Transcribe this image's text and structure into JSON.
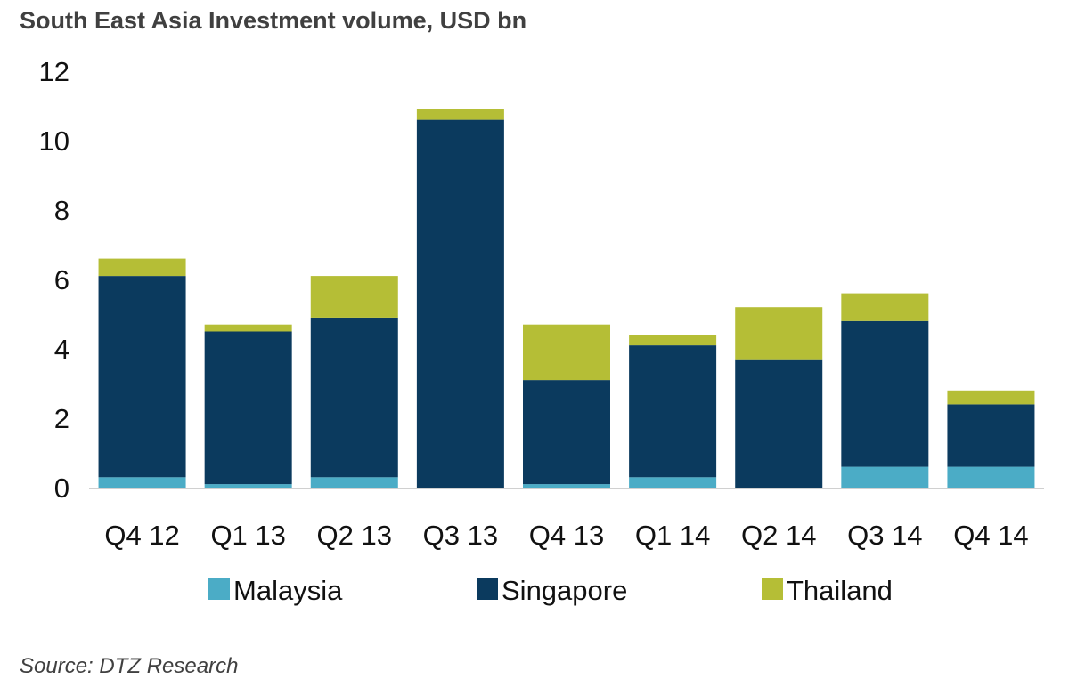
{
  "chart_data": {
    "type": "bar",
    "stacked": true,
    "title": "South East Asia Investment volume, USD bn",
    "source": "Source: DTZ Research",
    "categories": [
      "Q4 12",
      "Q1 13",
      "Q2 13",
      "Q3 13",
      "Q4 13",
      "Q1 14",
      "Q2 14",
      "Q3 14",
      "Q4 14"
    ],
    "series": [
      {
        "name": "Malaysia",
        "color": "#4BACC6",
        "values": [
          0.3,
          0.1,
          0.3,
          0.0,
          0.1,
          0.3,
          0.0,
          0.6,
          0.6
        ]
      },
      {
        "name": "Singapore",
        "color": "#0B3A5E",
        "values": [
          5.8,
          4.4,
          4.6,
          10.6,
          3.0,
          3.8,
          3.7,
          4.2,
          1.8
        ]
      },
      {
        "name": "Thailand",
        "color": "#B5BE36",
        "values": [
          0.5,
          0.2,
          1.2,
          0.3,
          1.6,
          0.3,
          1.5,
          0.8,
          0.4
        ]
      }
    ],
    "yticks": [
      "0",
      "2",
      "4",
      "6",
      "8",
      "10",
      "12"
    ],
    "ylim": [
      0,
      12
    ],
    "grid": false,
    "legend_position": "bottom"
  }
}
